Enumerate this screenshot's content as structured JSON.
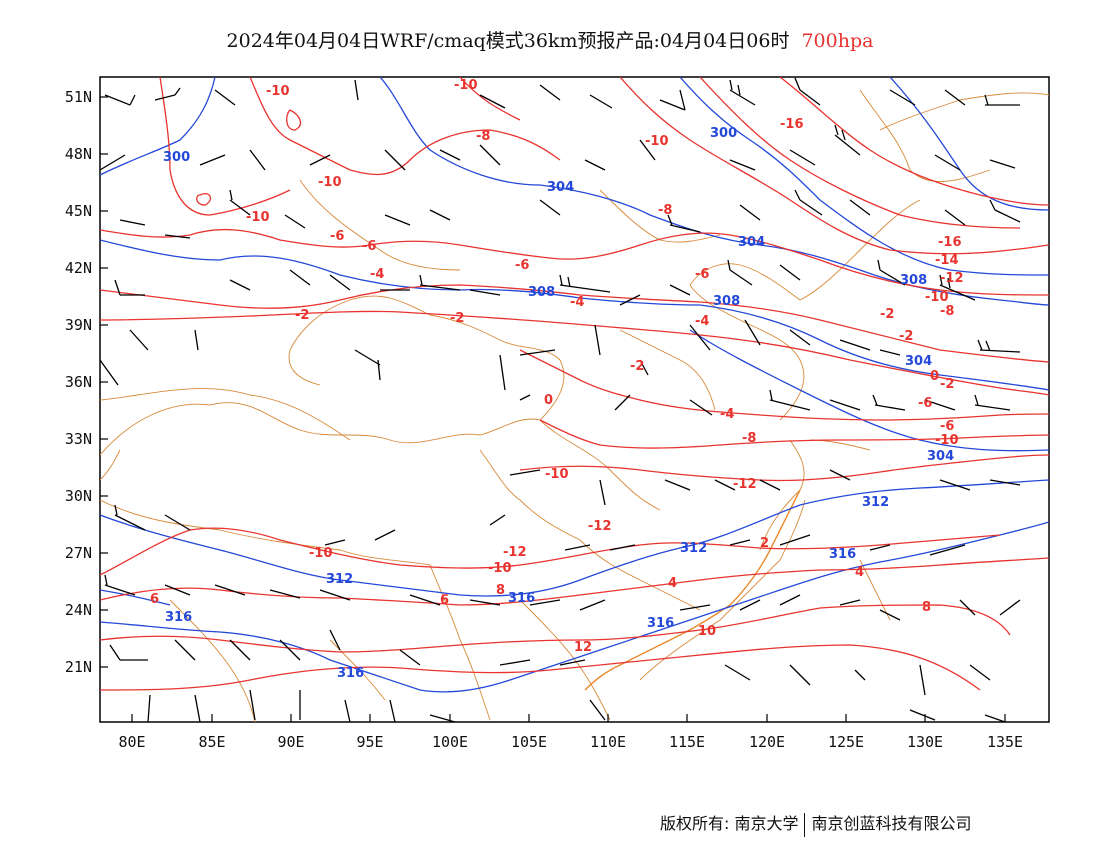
{
  "header": {
    "title": "2024年04月04日WRF/cmaq模式36km预报产品:04月04日06时",
    "level": "700hpa"
  },
  "footer": {
    "copyright": "版权所有: 南京大学",
    "company": "南京创蓝科技有限公司"
  },
  "colors": {
    "temperature": "#e8332f",
    "height": "#2448d8",
    "border": "#d8893a",
    "wind": "#000000"
  },
  "icons": {
    "wind": "wind-barb-icon"
  },
  "axes": {
    "lon_ticks": [
      "80E",
      "85E",
      "90E",
      "95E",
      "100E",
      "105E",
      "110E",
      "115E",
      "120E",
      "125E",
      "130E",
      "135E"
    ],
    "lat_ticks": [
      "51N",
      "48N",
      "45N",
      "42N",
      "39N",
      "36N",
      "33N",
      "30N",
      "27N",
      "24N",
      "21N"
    ]
  },
  "contour_labels": {
    "temperature": [
      "-10",
      "-10",
      "-10",
      "-16",
      "-10",
      "-8",
      "-10",
      "-6",
      "-6",
      "-8",
      "-6",
      "-16",
      "-14",
      "-12",
      "-10",
      "-8",
      "-6",
      "-4",
      "-4",
      "-2",
      "-2",
      "-4",
      "-2",
      "-2",
      "0",
      "-2",
      "0",
      "-2",
      "-4",
      "-6",
      "-6",
      "-8",
      "-10",
      "-10",
      "-12",
      "-12",
      "-10",
      "-12",
      "-10",
      "2",
      "4",
      "4",
      "6",
      "6",
      "8",
      "8",
      "10",
      "12"
    ],
    "height": [
      "300",
      "308",
      "304",
      "304",
      "300",
      "308",
      "308",
      "304",
      "304",
      "312",
      "312",
      "312",
      "316",
      "316",
      "316",
      "316",
      "316"
    ]
  }
}
